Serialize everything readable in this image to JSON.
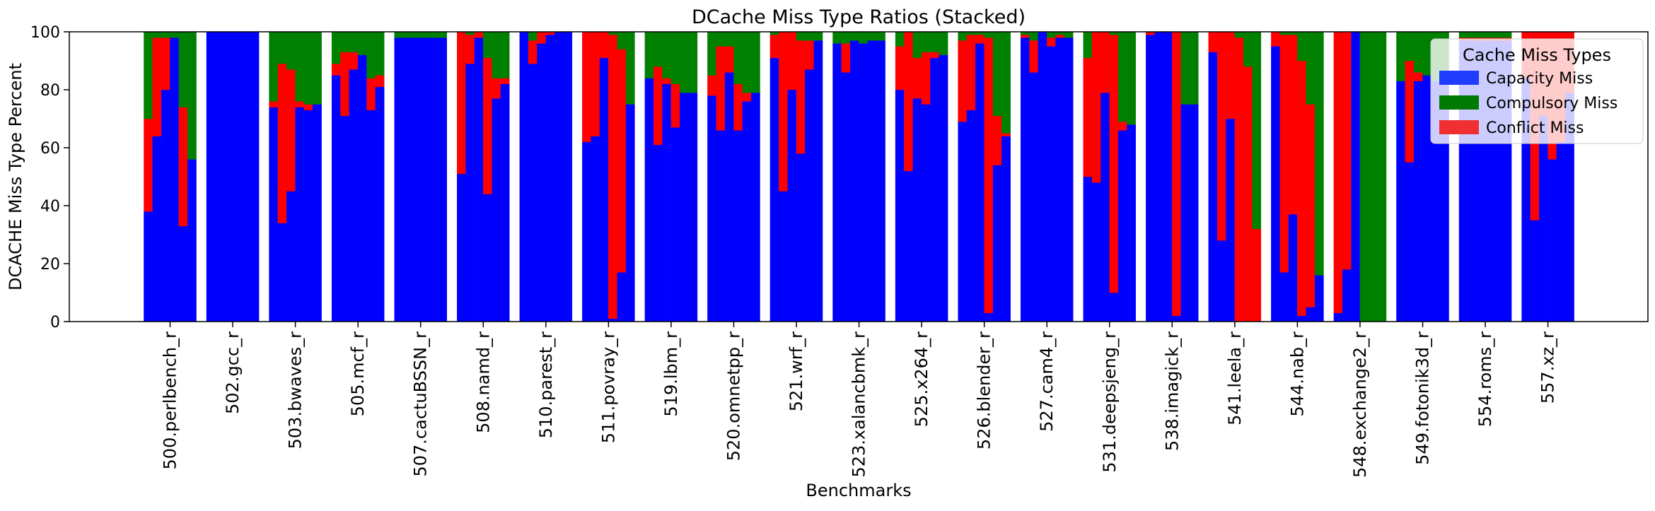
{
  "chart_data": {
    "type": "bar",
    "stacked": true,
    "title": "DCache Miss Type Ratios (Stacked)",
    "xlabel": "Benchmarks",
    "ylabel": "DCACHE Miss Type Percent",
    "ylim": [
      0,
      100
    ],
    "yticks": [
      0,
      20,
      40,
      60,
      80,
      100
    ],
    "grid": false,
    "legend": {
      "title": "Cache Miss Types",
      "placement": "top-right",
      "entries": [
        "Capacity Miss",
        "Compulsory Miss",
        "Conflict Miss"
      ]
    },
    "colors": {
      "Capacity Miss": "#0000ff",
      "Compulsory Miss": "#008000",
      "Conflict Miss": "#ff0000"
    },
    "legend_colors": {
      "Capacity Miss": "#1f3cff",
      "Compulsory Miss": "#007a00",
      "Conflict Miss": "#f03030"
    },
    "categories": [
      "500.perlbench_r",
      "502.gcc_r",
      "503.bwaves_r",
      "505.mcf_r",
      "507.cactuBSSN_r",
      "508.namd_r",
      "510.parest_r",
      "511.povray_r",
      "519.lbm_r",
      "520.omnetpp_r",
      "521.wrf_r",
      "523.xalancbmk_r",
      "525.x264_r",
      "526.blender_r",
      "527.cam4_r",
      "531.deepsjeng_r",
      "538.imagick_r",
      "541.leela_r",
      "544.nab_r",
      "548.exchange2_r",
      "549.fotonik3d_r",
      "554.roms_r",
      "557.xz_r"
    ],
    "groups": [
      {
        "benchmark": "500.perlbench_r",
        "capacity": [
          38,
          64,
          80,
          98,
          33,
          56
        ],
        "conflict": [
          32,
          34,
          18,
          0,
          41,
          0
        ]
      },
      {
        "benchmark": "502.gcc_r",
        "capacity": [
          100,
          100,
          100,
          100,
          100,
          100
        ],
        "conflict": [
          0,
          0,
          0,
          0,
          0,
          0
        ]
      },
      {
        "benchmark": "503.bwaves_r",
        "capacity": [
          74,
          34,
          45,
          74,
          73,
          75
        ],
        "conflict": [
          2,
          55,
          42,
          2,
          2,
          0
        ]
      },
      {
        "benchmark": "505.mcf_r",
        "capacity": [
          85,
          71,
          87,
          92,
          73,
          81
        ],
        "conflict": [
          4,
          22,
          6,
          0,
          11,
          4
        ]
      },
      {
        "benchmark": "507.cactuBSSN_r",
        "capacity": [
          98,
          98,
          98,
          98,
          98,
          98
        ],
        "conflict": [
          0,
          0,
          0,
          0,
          0,
          0
        ]
      },
      {
        "benchmark": "508.namd_r",
        "capacity": [
          51,
          89,
          98,
          44,
          77,
          82
        ],
        "conflict": [
          49,
          10,
          2,
          47,
          7,
          2
        ]
      },
      {
        "benchmark": "510.parest_r",
        "capacity": [
          100,
          89,
          96,
          99,
          100,
          100
        ],
        "conflict": [
          0,
          8,
          4,
          1,
          0,
          0
        ]
      },
      {
        "benchmark": "511.povray_r",
        "capacity": [
          62,
          64,
          91,
          1,
          17,
          75
        ],
        "conflict": [
          38,
          36,
          9,
          98,
          77,
          0
        ]
      },
      {
        "benchmark": "519.lbm_r",
        "capacity": [
          84,
          61,
          82,
          67,
          79,
          79
        ],
        "conflict": [
          0,
          27,
          2,
          15,
          0,
          0
        ]
      },
      {
        "benchmark": "520.omnetpp_r",
        "capacity": [
          78,
          66,
          86,
          66,
          76,
          79
        ],
        "conflict": [
          7,
          29,
          9,
          16,
          3,
          0
        ]
      },
      {
        "benchmark": "521.wrf_r",
        "capacity": [
          91,
          45,
          80,
          58,
          87,
          97
        ],
        "conflict": [
          8,
          55,
          20,
          39,
          10,
          0
        ]
      },
      {
        "benchmark": "523.xalancbmk_r",
        "capacity": [
          96,
          86,
          97,
          96,
          97,
          97
        ],
        "conflict": [
          0,
          10,
          0,
          0,
          0,
          0
        ]
      },
      {
        "benchmark": "525.x264_r",
        "capacity": [
          80,
          52,
          77,
          75,
          91,
          92
        ],
        "conflict": [
          15,
          48,
          14,
          18,
          2,
          0
        ]
      },
      {
        "benchmark": "526.blender_r",
        "capacity": [
          69,
          73,
          96,
          3,
          54,
          64
        ],
        "conflict": [
          28,
          26,
          3,
          95,
          17,
          1
        ]
      },
      {
        "benchmark": "527.cam4_r",
        "capacity": [
          98,
          86,
          100,
          95,
          98,
          98
        ],
        "conflict": [
          1,
          11,
          0,
          3,
          1,
          0
        ]
      },
      {
        "benchmark": "531.deepsjeng_r",
        "capacity": [
          50,
          48,
          79,
          10,
          66,
          68
        ],
        "conflict": [
          41,
          52,
          21,
          89,
          3,
          0
        ]
      },
      {
        "benchmark": "538.imagick_r",
        "capacity": [
          99,
          100,
          100,
          2,
          75,
          75
        ],
        "conflict": [
          1,
          0,
          0,
          98,
          0,
          0
        ]
      },
      {
        "benchmark": "541.leela_r",
        "capacity": [
          93,
          28,
          70,
          0,
          0,
          0
        ],
        "conflict": [
          7,
          72,
          30,
          98,
          88,
          32
        ]
      },
      {
        "benchmark": "544.nab_r",
        "capacity": [
          95,
          17,
          37,
          2,
          5,
          16
        ],
        "conflict": [
          5,
          82,
          62,
          88,
          70,
          0
        ]
      },
      {
        "benchmark": "548.exchange2_r",
        "capacity": [
          3,
          18,
          100,
          0,
          0,
          0
        ],
        "conflict": [
          97,
          82,
          0,
          0,
          0,
          0
        ]
      },
      {
        "benchmark": "549.fotonik3d_r",
        "capacity": [
          83,
          55,
          83,
          85,
          83,
          84
        ],
        "conflict": [
          0,
          35,
          3,
          0,
          0,
          0
        ]
      },
      {
        "benchmark": "554.roms_r",
        "capacity": [
          97,
          97,
          97,
          97,
          97,
          97
        ],
        "conflict": [
          1,
          1,
          1,
          1,
          1,
          1
        ]
      },
      {
        "benchmark": "557.xz_r",
        "capacity": [
          84,
          35,
          71,
          56,
          62,
          79
        ],
        "conflict": [
          16,
          65,
          29,
          44,
          38,
          21
        ]
      }
    ]
  }
}
